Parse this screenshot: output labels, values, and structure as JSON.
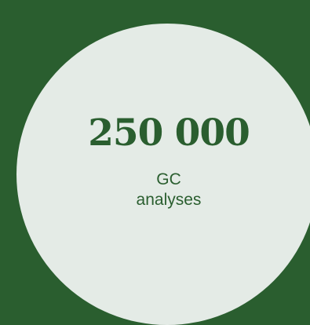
{
  "colors": {
    "background": "#2a5e2f",
    "circle": "#e4ebe6",
    "text": "#2a5e2f"
  },
  "stat": {
    "value": "250 000",
    "label_line1": "GC",
    "label_line2": "analyses"
  }
}
